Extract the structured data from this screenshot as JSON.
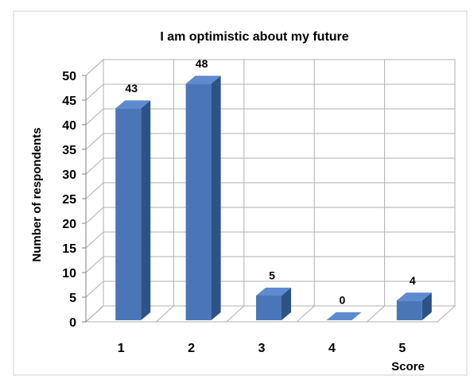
{
  "chart_data": {
    "type": "bar",
    "title": "I am optimistic about my future",
    "categories": [
      "1",
      "2",
      "3",
      "4",
      "5"
    ],
    "values": [
      43,
      48,
      5,
      0,
      4
    ],
    "color": "#4a76b8",
    "x_label": "Score",
    "y_label": "Number of respondents",
    "ylim": [
      0,
      50
    ],
    "yticks": [
      0,
      5,
      10,
      15,
      20,
      25,
      30,
      35,
      40,
      45,
      50
    ],
    "grid": true
  }
}
